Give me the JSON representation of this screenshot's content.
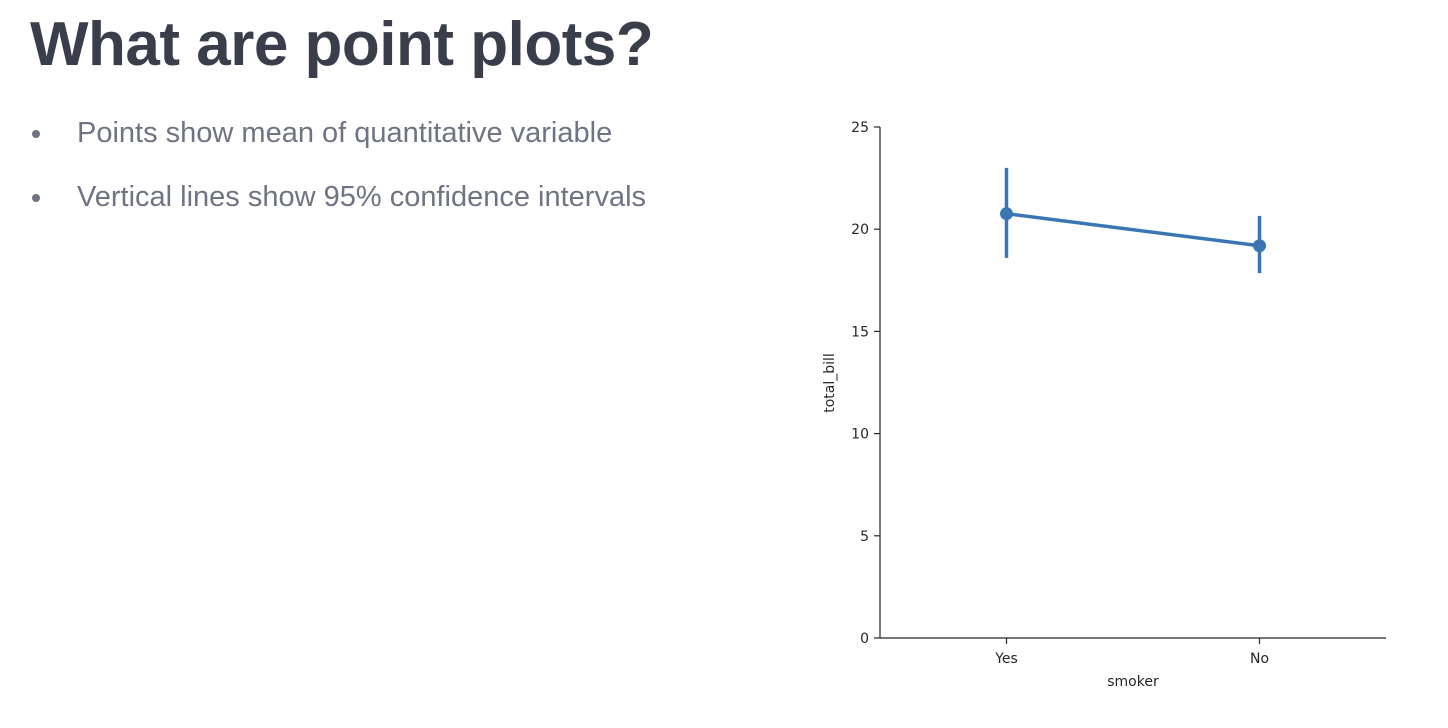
{
  "slide": {
    "title": "What are point plots?",
    "bullets": [
      "Points show mean of quantitative variable",
      "Vertical lines show 95% confidence intervals"
    ]
  },
  "chart_data": {
    "type": "point",
    "categories": [
      "Yes",
      "No"
    ],
    "values": [
      20.76,
      19.19
    ],
    "ci": [
      [
        18.6,
        23.0
      ],
      [
        17.85,
        20.65
      ]
    ],
    "xlabel": "smoker",
    "ylabel": "total_bill",
    "ylim": [
      0,
      25
    ],
    "yticks": [
      0,
      5,
      10,
      15,
      20,
      25
    ],
    "color": "#3a76b4",
    "grid": false,
    "spines": [
      "left",
      "bottom"
    ]
  }
}
